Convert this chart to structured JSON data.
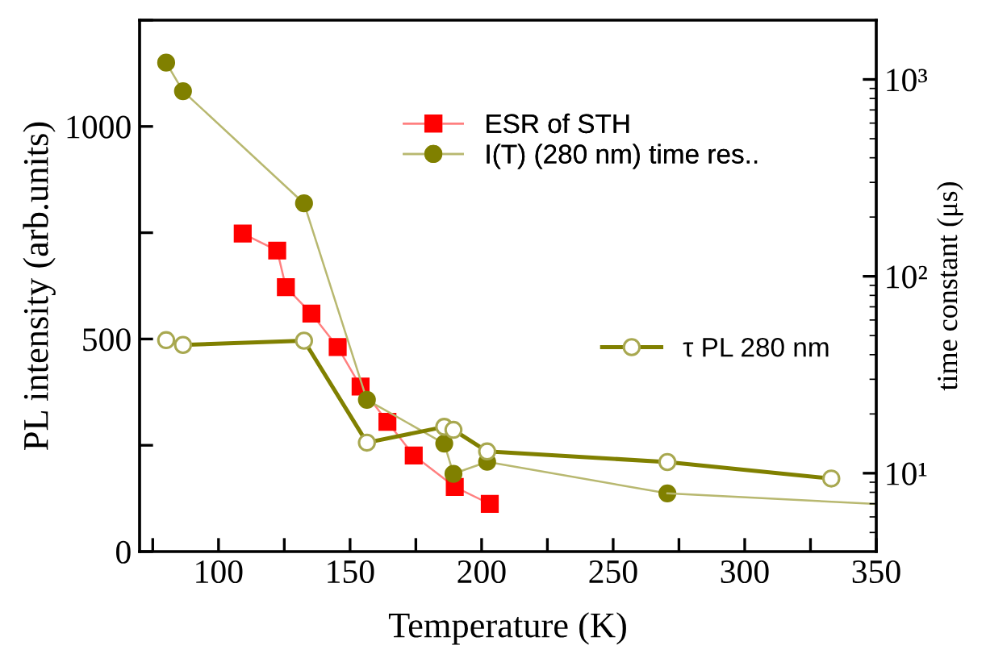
{
  "chart_data": {
    "type": "line",
    "xlabel": "Temperature (K)",
    "ylabel": "PL intensity (arb.units)",
    "y2label": "time constant (μs)",
    "xlim": [
      70,
      350
    ],
    "xticks": [
      {
        "value": 75,
        "label": null
      },
      100,
      {
        "value": 125,
        "label": null
      },
      150,
      {
        "value": 175,
        "label": null
      },
      200,
      {
        "value": 225,
        "label": null
      },
      250,
      {
        "value": 275,
        "label": null
      },
      300,
      {
        "value": 325,
        "label": null
      },
      350
    ],
    "ylim": [
      0,
      1250
    ],
    "yticks": [
      0,
      {
        "value": 250,
        "label": null
      },
      500,
      {
        "value": 750,
        "label": null
      },
      1000,
      {
        "value": 1250,
        "label": null
      }
    ],
    "y2lim": [
      4,
      2000
    ],
    "y2ticks": [
      {
        "value": 10,
        "label": "10¹"
      },
      {
        "value": 100,
        "label": "10²"
      },
      {
        "value": 1000,
        "label": "10³"
      }
    ],
    "log": "y2",
    "grid": false,
    "legend": "top",
    "line_style": "solid",
    "series": [
      {
        "name": "ESR of STH",
        "color": "#ff0000",
        "marker": "square",
        "x": [
          109.2,
          122.3,
          125.6,
          135.3,
          145.3,
          154.0,
          164.2,
          174.2,
          189.8,
          203.1
        ],
        "values": [
          748,
          708,
          622,
          560,
          481,
          388,
          305,
          226,
          152,
          112
        ]
      },
      {
        "name": "I(T) (280 nm) time res..",
        "color": "#808000",
        "marker": "circle",
        "x": [
          80.1,
          86.5,
          132.5,
          156.4,
          185.8,
          189.3,
          202.1,
          270.6
        ],
        "values": [
          1150,
          1083,
          819,
          357,
          254,
          183,
          211,
          137
        ]
      },
      {
        "color": "#b8b870",
        "marker": "none",
        "x": [
          270.6,
          350
        ],
        "values": [
          137,
          112
        ]
      },
      {
        "name": "τ PL 280 nm",
        "color": "#808000",
        "marker": "circle",
        "axis": "y2",
        "x": [
          80.1,
          86.5,
          132.5,
          156.4,
          185.8,
          189.3,
          202.1,
          270.6,
          332.9
        ],
        "values": [
          47.4,
          44.8,
          47.1,
          14.3,
          17.2,
          16.6,
          12.9,
          11.4,
          9.4
        ]
      }
    ]
  }
}
